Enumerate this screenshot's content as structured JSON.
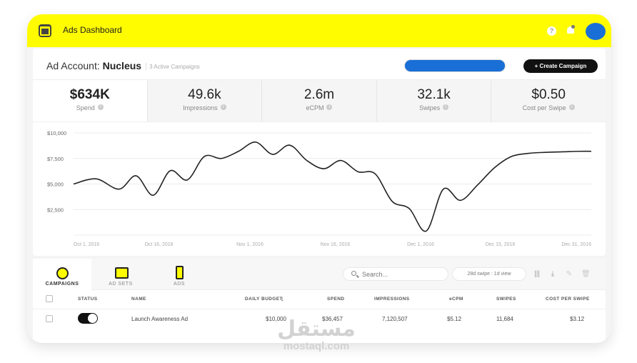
{
  "header": {
    "title": "Ads Dashboard"
  },
  "account": {
    "label": "Ad Account:",
    "name": "Nucleus",
    "active_campaigns": "3 Active Campaigns",
    "create_button": "+ Create Campaign"
  },
  "kpis": [
    {
      "value": "$634K",
      "label": "Spend"
    },
    {
      "value": "49.6k",
      "label": "Impressions"
    },
    {
      "value": "2.6m",
      "label": "eCPM"
    },
    {
      "value": "32.1k",
      "label": "Swipes"
    },
    {
      "value": "$0.50",
      "label": "Cost per Swipe"
    }
  ],
  "chart_data": {
    "type": "line",
    "x_ticks": [
      "Oct 1, 2016",
      "Oct 16, 2016",
      "Nov 1, 2016",
      "Nov 16, 2016",
      "Dec 1, 2016",
      "Dec 15, 2016",
      "Dec 31, 2016"
    ],
    "yticks": [
      "$10,000",
      "$7,500",
      "$5,000",
      "$2,500"
    ],
    "ylim": [
      0,
      10000
    ],
    "xlim": [
      0,
      91
    ],
    "series": [
      {
        "x": [
          0,
          4,
          8,
          11,
          14,
          17,
          20,
          23,
          26,
          29,
          32,
          35,
          38,
          41,
          44,
          47,
          50,
          53,
          56,
          59,
          62,
          65,
          68,
          71,
          74,
          77,
          80,
          83,
          86,
          89,
          91
        ],
        "values": [
          5000,
          5500,
          4500,
          5800,
          3900,
          6300,
          5400,
          7700,
          7500,
          8200,
          9100,
          7900,
          8800,
          7300,
          6500,
          7300,
          6200,
          6000,
          3300,
          2600,
          400,
          4500,
          3400,
          4900,
          6600,
          7700,
          8000,
          8100,
          8150,
          8200,
          8200
        ]
      }
    ],
    "grid": true
  },
  "tabs": [
    {
      "label": "CAMPAIGNS"
    },
    {
      "label": "AD SETS"
    },
    {
      "label": "ADS"
    }
  ],
  "search": {
    "placeholder": "Search..."
  },
  "attribution": "28d swipe : 1d view",
  "table": {
    "columns": [
      "STATUS",
      "NAME",
      "DAILY BUDGET",
      "SPEND",
      "IMPRESSIONS",
      "eCPM",
      "SWIPES",
      "COST PER SWIPE"
    ],
    "rows": [
      {
        "status": "on",
        "name": "Launch Awareness Ad",
        "daily_budget": "$10,000",
        "spend": "$36,457",
        "impressions": "7,120,507",
        "ecpm": "$5.12",
        "swipes": "11,684",
        "cost_per_swipe": "$3.12"
      }
    ]
  },
  "watermark": {
    "arabic": "مستقل",
    "latin": "mostaql.com"
  },
  "colors": {
    "accent": "#fffc00",
    "line": "#222222",
    "redaction": "#1a6fd6"
  }
}
